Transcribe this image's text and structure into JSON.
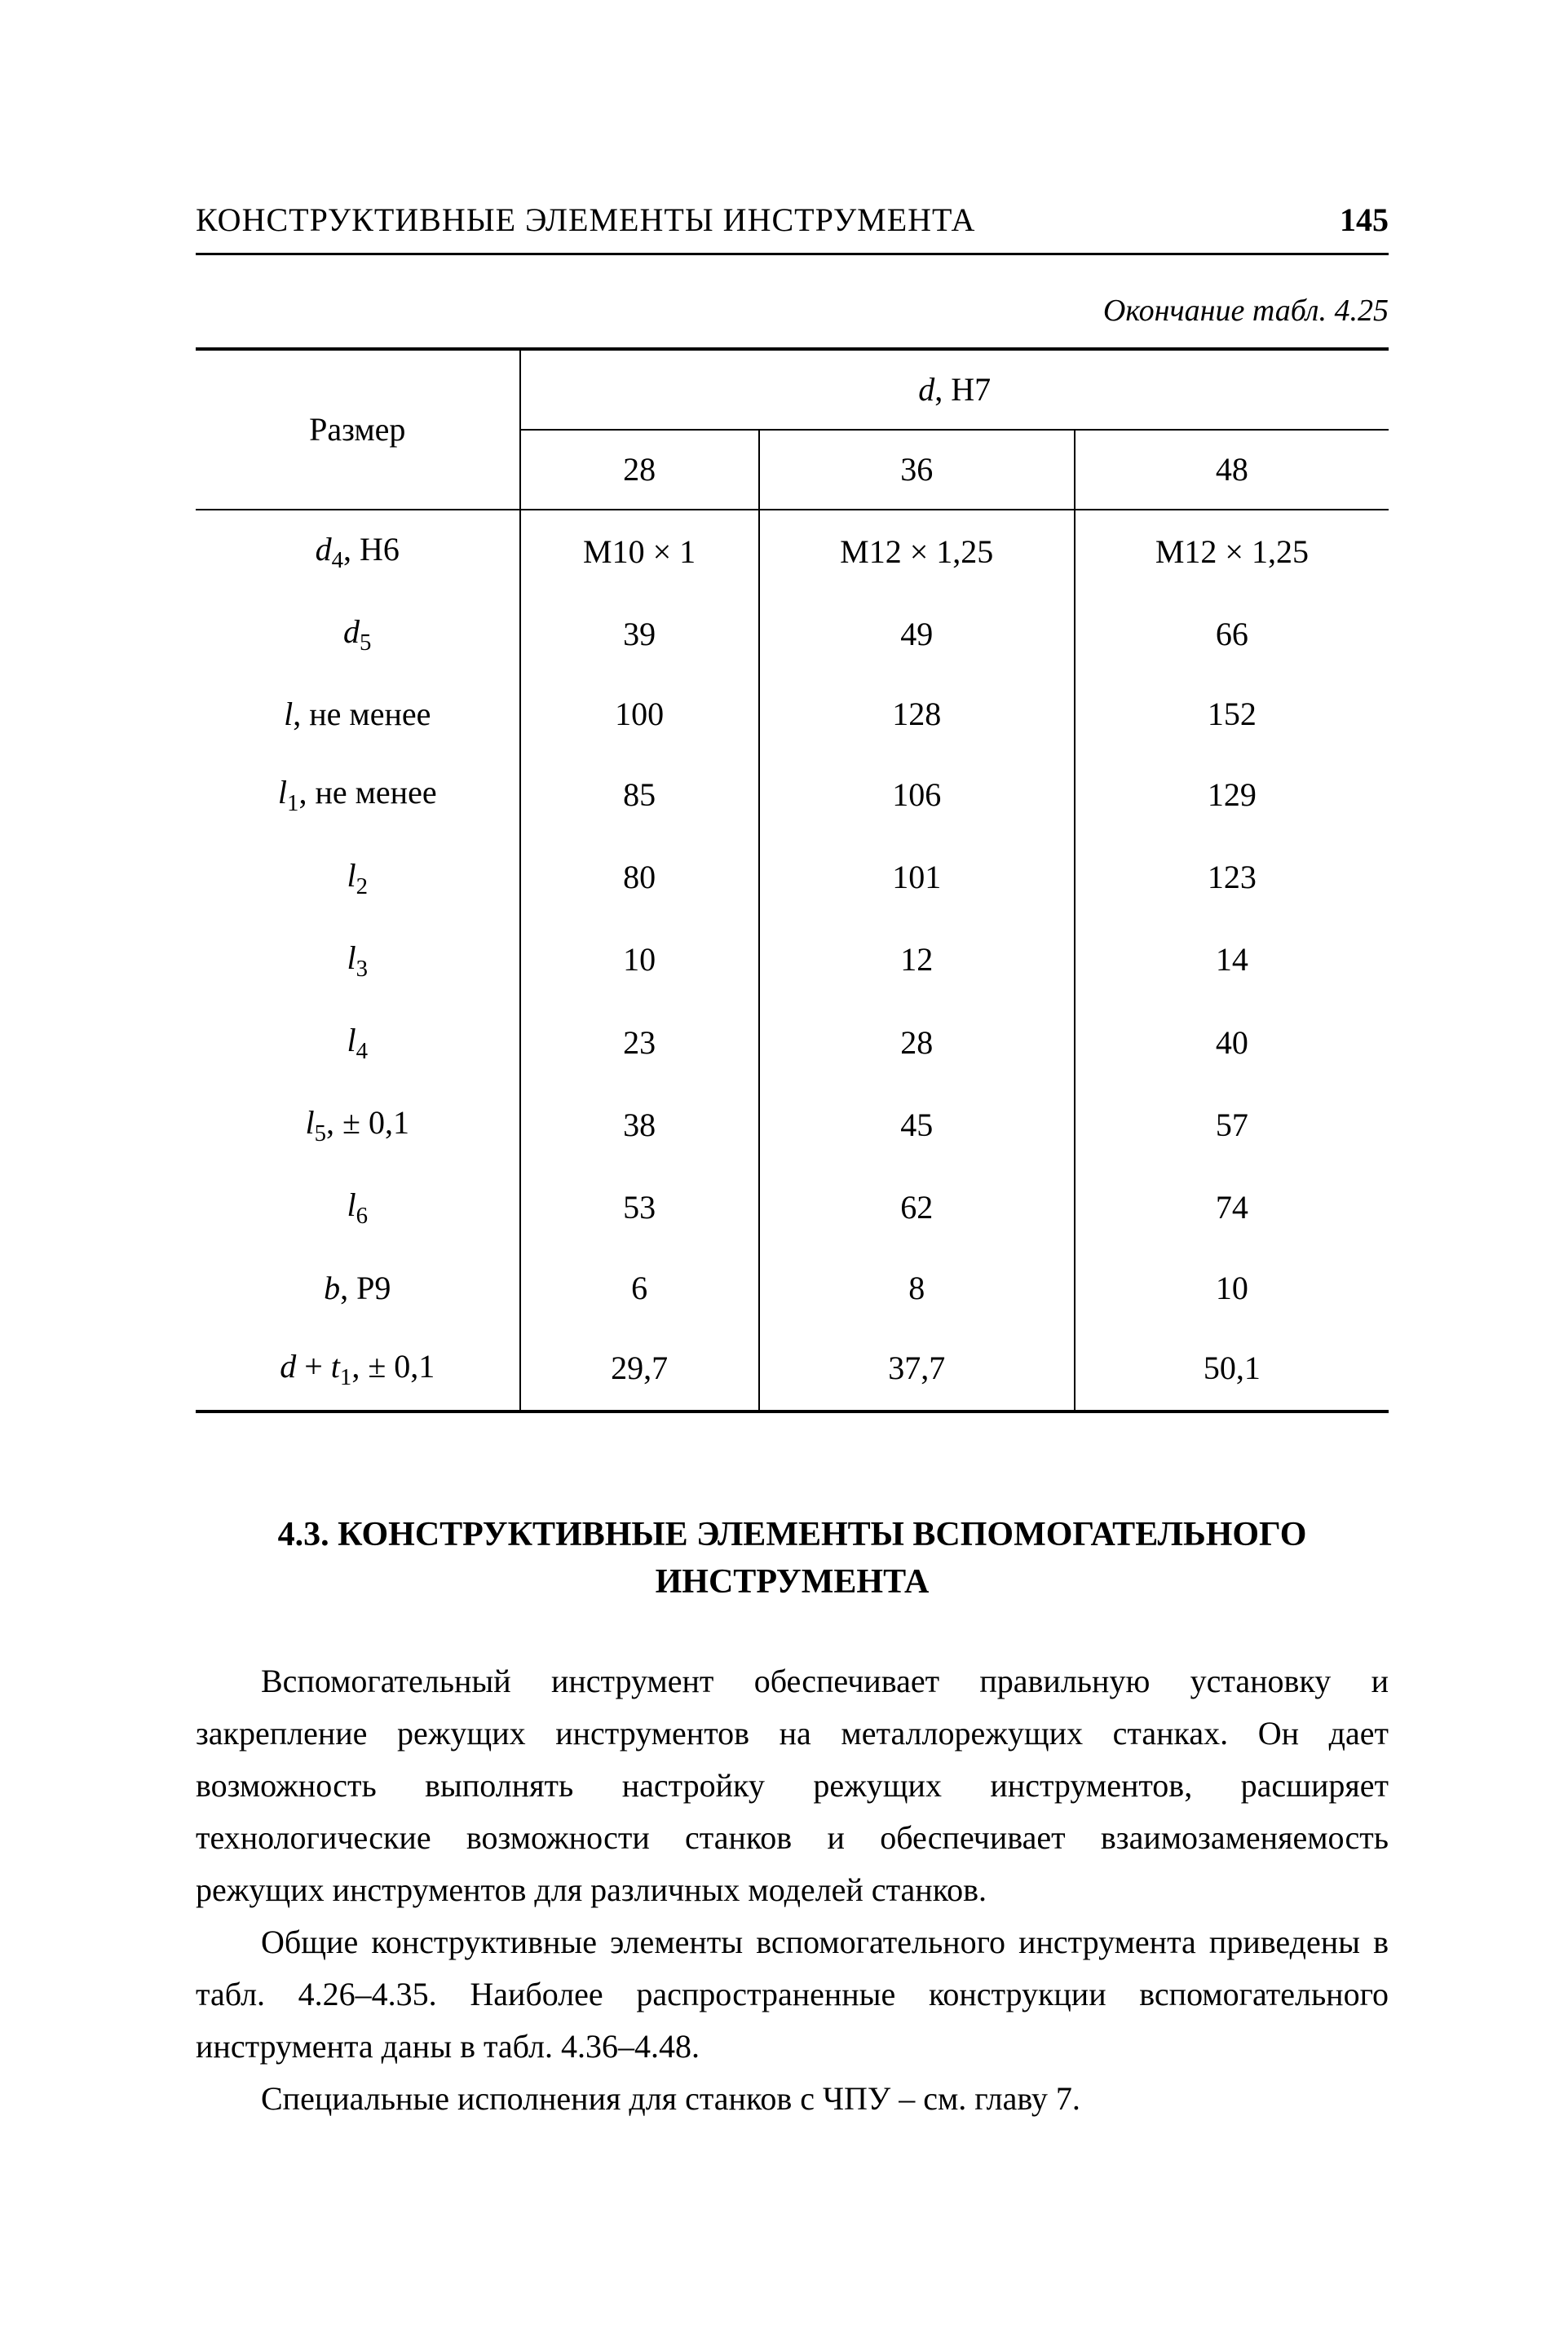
{
  "header": {
    "running_title": "КОНСТРУКТИВНЫЕ ЭЛЕМЕНТЫ ИНСТРУМЕНТА",
    "page_number": "145"
  },
  "table_continuation": "Окончание табл. 4.25",
  "table": {
    "type": "table",
    "border_color": "#000000",
    "background_color": "#ffffff",
    "size_label": "Размер",
    "super_header_html": "<span class=\"ital\">d</span>, H7",
    "columns": [
      "28",
      "36",
      "48"
    ],
    "rows": [
      {
        "label_html": "<span class=\"ital\">d</span><span class=\"sub\">4</span>, H6",
        "cells": [
          "M10 × 1",
          "M12 × 1,25",
          "M12 × 1,25"
        ]
      },
      {
        "label_html": "<span class=\"ital\">d</span><span class=\"sub\">5</span>",
        "cells": [
          "39",
          "49",
          "66"
        ]
      },
      {
        "label_html": "<span class=\"ital\">l</span>, не менее",
        "cells": [
          "100",
          "128",
          "152"
        ]
      },
      {
        "label_html": "<span class=\"ital\">l</span><span class=\"sub\">1</span>, не менее",
        "cells": [
          "85",
          "106",
          "129"
        ]
      },
      {
        "label_html": "<span class=\"ital\">l</span><span class=\"sub\">2</span>",
        "cells": [
          "80",
          "101",
          "123"
        ]
      },
      {
        "label_html": "<span class=\"ital\">l</span><span class=\"sub\">3</span>",
        "cells": [
          "10",
          "12",
          "14"
        ]
      },
      {
        "label_html": "<span class=\"ital\">l</span><span class=\"sub\">4</span>",
        "cells": [
          "23",
          "28",
          "40"
        ]
      },
      {
        "label_html": "<span class=\"ital\">l</span><span class=\"sub\">5</span>, ± 0,1",
        "cells": [
          "38",
          "45",
          "57"
        ]
      },
      {
        "label_html": "<span class=\"ital\">l</span><span class=\"sub\">6</span>",
        "cells": [
          "53",
          "62",
          "74"
        ]
      },
      {
        "label_html": "<span class=\"ital\">b</span>, P9",
        "cells": [
          "6",
          "8",
          "10"
        ]
      },
      {
        "label_html": "<span class=\"ital\">d</span> + <span class=\"ital\">t</span><span class=\"sub\">1</span>, ± 0,1",
        "cells": [
          "29,7",
          "37,7",
          "50,1"
        ]
      }
    ]
  },
  "section": {
    "heading": "4.3. КОНСТРУКТИВНЫЕ ЭЛЕМЕНТЫ ВСПОМОГАТЕЛЬНОГО ИНСТРУМЕНТА",
    "paragraphs": [
      "Вспомогательный инструмент обеспечивает правильную установку и закрепление режущих инструментов на металлорежущих станках. Он дает возможность выполнять настройку режущих инструментов, расширяет технологические возможности станков и обеспечивает взаимозаменяемость режущих инструментов для различных моделей станков.",
      "Общие конструктивные элементы вспомогательного инструмента приведены в табл. 4.26–4.35. Наиболее распространенные конструкции вспомогательного инструмента даны в табл. 4.36–4.48.",
      "Специальные исполнения для станков с ЧПУ – см. главу 7."
    ]
  }
}
